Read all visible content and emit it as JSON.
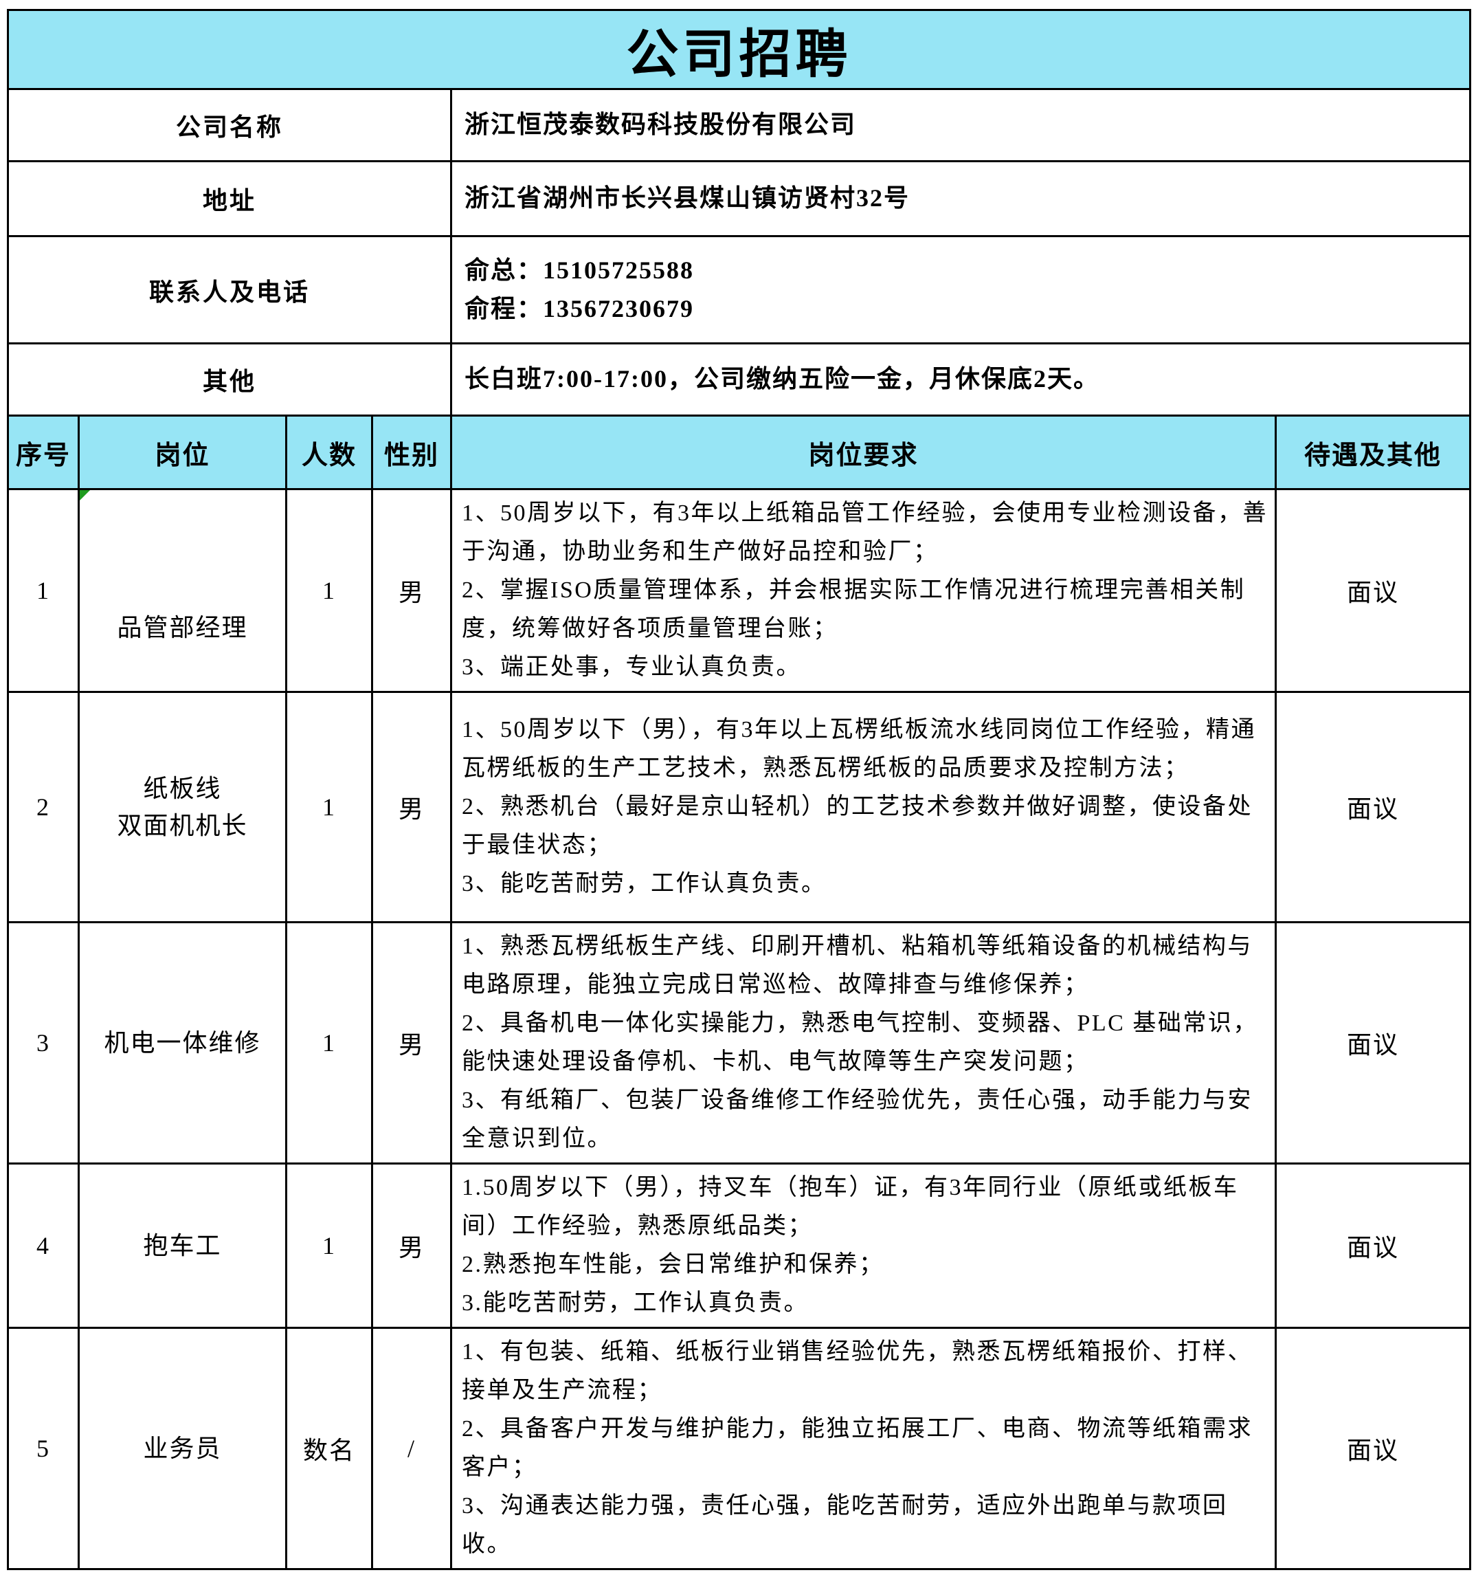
{
  "title": "公司招聘",
  "colors": {
    "header_bg": "#97e5f5",
    "border": "#000000",
    "error_flag_green": "#1e9b1e",
    "text": "#000000",
    "background": "#ffffff"
  },
  "info_rows": [
    {
      "label": "公司名称",
      "value": "浙江恒茂泰数码科技股份有限公司"
    },
    {
      "label": "地址",
      "value": "浙江省湖州市长兴县煤山镇访贤村32号"
    },
    {
      "label": "联系人及电话",
      "value": "俞总：15105725588\n俞程：13567230679"
    },
    {
      "label": "其他",
      "value": "长白班7:00-17:00，公司缴纳五险一金，月休保底2天。"
    }
  ],
  "table": {
    "headers": [
      "序号",
      "岗位",
      "人数",
      "性别",
      "岗位要求",
      "待遇及其他"
    ],
    "rows": [
      {
        "no": "1",
        "post": "品管部经理",
        "count": "1",
        "gender": "男",
        "requirements": "1、50周岁以下，有3年以上纸箱品管工作经验，会使用专业检测设备，善于沟通，协助业务和生产做好品控和验厂；\n2、掌握ISO质量管理体系，并会根据实际工作情况进行梳理完善相关制度，统筹做好各项质量管理台账；\n3、端正处事，专业认真负责。",
        "salary": "面议"
      },
      {
        "no": "2",
        "post": "纸板线\n双面机机长",
        "count": "1",
        "gender": "男",
        "requirements": "1、50周岁以下（男），有3年以上瓦楞纸板流水线同岗位工作经验，精通瓦楞纸板的生产工艺技术，熟悉瓦楞纸板的品质要求及控制方法；\n2、熟悉机台（最好是京山轻机）的工艺技术参数并做好调整，使设备处于最佳状态；\n3、能吃苦耐劳，工作认真负责。",
        "salary": "面议"
      },
      {
        "no": "3",
        "post": "机电一体维修",
        "count": "1",
        "gender": "男",
        "requirements": "1、熟悉瓦楞纸板生产线、印刷开槽机、粘箱机等纸箱设备的机械结构与电路原理，能独立完成日常巡检、故障排查与维修保养；\n2、具备机电一体化实操能力，熟悉电气控制、变频器、PLC 基础常识，能快速处理设备停机、卡机、电气故障等生产突发问题；\n3、有纸箱厂、包装厂设备维修工作经验优先，责任心强，动手能力与安全意识到位。",
        "salary": "面议"
      },
      {
        "no": "4",
        "post": "抱车工",
        "count": "1",
        "gender": "男",
        "requirements": "1.50周岁以下（男），持叉车（抱车）证，有3年同行业（原纸或纸板车间）工作经验，熟悉原纸品类；\n2.熟悉抱车性能，会日常维护和保养；\n3.能吃苦耐劳，工作认真负责。",
        "salary": "面议"
      },
      {
        "no": "5",
        "post": "业务员",
        "count": "数名",
        "gender": "/",
        "requirements": "1、有包装、纸箱、纸板行业销售经验优先，熟悉瓦楞纸箱报价、打样、接单及生产流程；\n2、具备客户开发与维护能力，能独立拓展工厂、电商、物流等纸箱需求客户；\n3、沟通表达能力强，责任心强，能吃苦耐劳，适应外出跑单与款项回收。",
        "salary": "面议"
      }
    ]
  }
}
